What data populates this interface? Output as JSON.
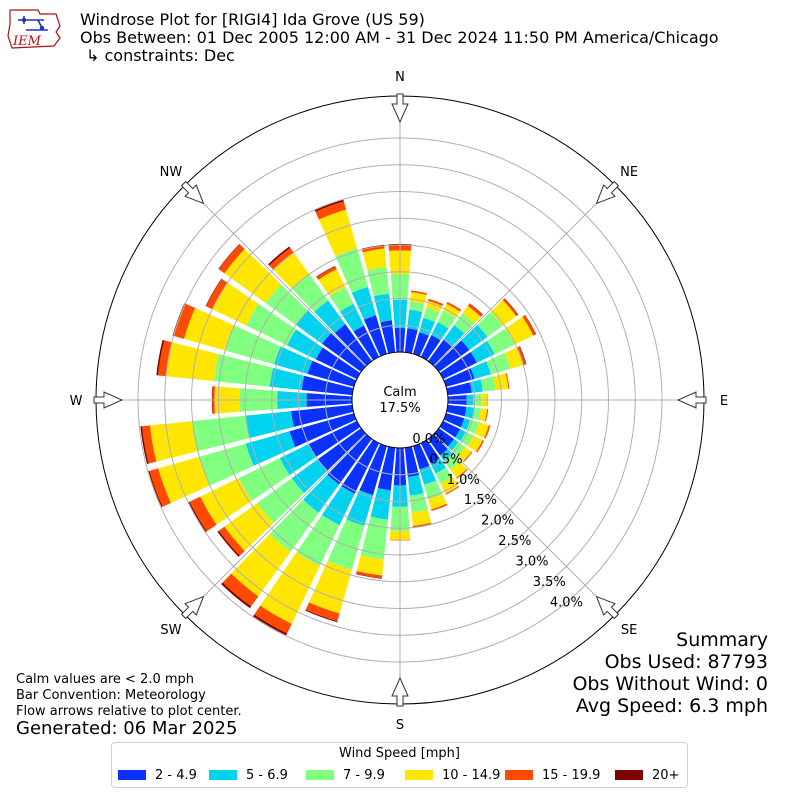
{
  "header": {
    "title_line1": "Windrose Plot for [RIGI4] Ida Grove (US 59)",
    "title_line2": "Obs Between: 01 Dec 2005 12:00 AM - 31 Dec 2024 11:50 PM America/Chicago",
    "title_line3": "↳ constraints: Dec",
    "logo_text": "IEM"
  },
  "footer": {
    "note1": "Calm values are < 2.0 mph",
    "note2": "Bar Convention: Meteorology",
    "note3": "Flow arrows relative to plot center.",
    "generated": "Generated: 06 Mar 2025"
  },
  "summary": {
    "title": "Summary",
    "obs_used": "Obs Used: 87793",
    "obs_without_wind": "Obs Without Wind: 0",
    "avg_speed": "Avg Speed: 6.3 mph"
  },
  "calm": {
    "label": "Calm",
    "value": "17.5%"
  },
  "chart_data": {
    "type": "windrose",
    "direction_labels": [
      "N",
      "NE",
      "E",
      "SE",
      "S",
      "SW",
      "W",
      "NW"
    ],
    "radial_tick_labels": [
      "0.0%",
      "0.5%",
      "1.0%",
      "1.5%",
      "2.0%",
      "2.5%",
      "3.0%",
      "3.5%",
      "4.0%"
    ],
    "rlim": [
      0,
      4.5
    ],
    "legend_title": "Wind Speed [mph]",
    "speed_bins": [
      {
        "label": "2 - 4.9",
        "color": "#0a32ff"
      },
      {
        "label": "5 - 6.9",
        "color": "#00d2f0"
      },
      {
        "label": "7 - 9.9",
        "color": "#80ff80"
      },
      {
        "label": "10 - 14.9",
        "color": "#ffe600"
      },
      {
        "label": "15 - 19.9",
        "color": "#ff4a00"
      },
      {
        "label": "20+",
        "color": "#800000"
      }
    ],
    "direction_degrees": [
      0,
      10,
      20,
      30,
      40,
      50,
      60,
      70,
      80,
      90,
      100,
      110,
      120,
      130,
      140,
      150,
      160,
      170,
      180,
      190,
      200,
      210,
      220,
      230,
      240,
      250,
      260,
      270,
      280,
      290,
      300,
      310,
      320,
      330,
      340,
      350
    ],
    "cumulative_percent": [
      [
        0.45,
        0.98,
        1.46,
        1.9,
        2.0,
        2.02
      ],
      [
        0.45,
        0.8,
        0.95,
        1.13,
        1.16,
        1.16
      ],
      [
        0.42,
        0.7,
        0.9,
        1.03,
        1.07,
        1.07
      ],
      [
        0.45,
        0.72,
        0.96,
        1.1,
        1.14,
        1.14
      ],
      [
        0.51,
        0.83,
        1.1,
        1.27,
        1.32,
        1.33
      ],
      [
        0.7,
        1.12,
        1.47,
        1.78,
        1.82,
        1.83
      ],
      [
        0.7,
        1.07,
        1.48,
        1.87,
        1.92,
        1.93
      ],
      [
        0.55,
        0.87,
        1.25,
        1.5,
        1.55,
        1.56
      ],
      [
        0.45,
        0.66,
        0.9,
        1.14,
        1.16,
        1.16
      ],
      [
        0.35,
        0.48,
        0.62,
        0.73,
        0.74,
        0.74
      ],
      [
        0.35,
        0.49,
        0.62,
        0.74,
        0.76,
        0.76
      ],
      [
        0.35,
        0.47,
        0.64,
        0.83,
        0.86,
        0.86
      ],
      [
        0.35,
        0.47,
        0.63,
        0.82,
        0.85,
        0.85
      ],
      [
        0.35,
        0.45,
        0.6,
        0.75,
        0.77,
        0.77
      ],
      [
        0.38,
        0.52,
        0.71,
        0.9,
        0.92,
        0.92
      ],
      [
        0.42,
        0.63,
        0.84,
        1.05,
        1.07,
        1.07
      ],
      [
        0.45,
        0.75,
        1.03,
        1.23,
        1.26,
        1.26
      ],
      [
        0.55,
        0.9,
        1.22,
        1.47,
        1.5,
        1.5
      ],
      [
        0.7,
        1.1,
        1.55,
        1.72,
        1.73,
        1.73
      ],
      [
        0.8,
        1.35,
        2.1,
        2.4,
        2.45,
        2.46
      ],
      [
        0.95,
        1.55,
        2.4,
        3.25,
        3.4,
        3.42
      ],
      [
        1.05,
        1.7,
        2.55,
        3.75,
        3.95,
        3.99
      ],
      [
        1.05,
        1.7,
        2.6,
        3.63,
        3.86,
        3.9
      ],
      [
        1.0,
        1.6,
        2.4,
        3.15,
        3.28,
        3.31
      ],
      [
        1.0,
        1.6,
        2.45,
        3.25,
        3.47,
        3.5
      ],
      [
        1.25,
        2.1,
        3.0,
        3.8,
        3.97,
        3.99
      ],
      [
        1.15,
        2.0,
        3.0,
        3.8,
        3.95,
        3.98
      ],
      [
        0.85,
        1.4,
        2.1,
        2.57,
        2.61,
        2.62
      ],
      [
        0.95,
        1.55,
        2.6,
        3.5,
        3.65,
        3.68
      ],
      [
        0.9,
        1.55,
        2.5,
        3.3,
        3.51,
        3.52
      ],
      [
        0.85,
        1.45,
        2.3,
        3.0,
        3.13,
        3.14
      ],
      [
        0.9,
        1.5,
        2.2,
        3.15,
        3.28,
        3.29
      ],
      [
        0.85,
        1.4,
        2.0,
        2.5,
        2.61,
        2.64
      ],
      [
        0.65,
        1.1,
        1.45,
        1.82,
        1.88,
        1.89
      ],
      [
        0.75,
        1.3,
        2.05,
        2.8,
        2.96,
        3.0
      ],
      [
        0.6,
        1.1,
        1.6,
        1.95,
        2.0,
        2.02
      ]
    ]
  }
}
